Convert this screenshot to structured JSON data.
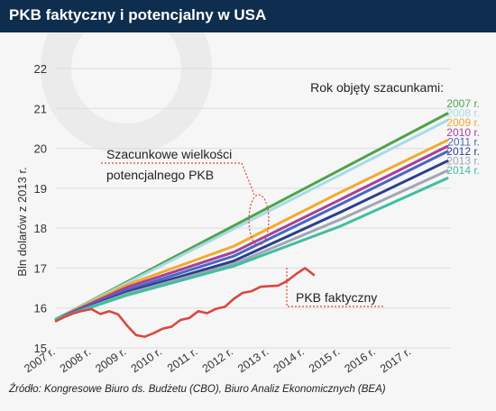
{
  "title": "PKB faktyczny i potencjalny w USA",
  "source": "Źródło: Kongresowe Biuro ds. Budżetu (CBO), Biuro Analiz Ekonomicznych (BEA)",
  "colors": {
    "header_bg": "#0f2d4e",
    "actual_line": "#d9473f",
    "annotation": "#d9473f"
  },
  "chart_data": {
    "type": "line",
    "ylabel": "Bln dolarów z 2013 r.",
    "ylim": [
      15,
      22
    ],
    "yticks": [
      15,
      16,
      17,
      18,
      19,
      20,
      21,
      22
    ],
    "xlim": [
      2007,
      2018
    ],
    "xticks": [
      2007,
      2008,
      2009,
      2010,
      2011,
      2012,
      2013,
      2014,
      2015,
      2016,
      2017
    ],
    "xtick_labels": [
      "2007 r.",
      "2008 r.",
      "2009 r.",
      "2010 r.",
      "2011 r.",
      "2012 r.",
      "2013 r.",
      "2014 r.",
      "2015 r.",
      "2016 r.",
      "2017 r."
    ],
    "legend_title": "Rok objęty szacunkami:",
    "legend_position": "right",
    "grid": true,
    "annotations": {
      "potential": "Szacunkowe wielkości potencjalnego PKB",
      "actual": "PKB faktyczny"
    },
    "series": [
      {
        "name": "2007 r.",
        "color": "#4ea34a",
        "x": [
          2007,
          2018
        ],
        "y": [
          15.72,
          20.87
        ]
      },
      {
        "name": "2008 r.",
        "color": "#a9d9ea",
        "x": [
          2007,
          2018
        ],
        "y": [
          15.72,
          20.7
        ]
      },
      {
        "name": "2009 r.",
        "color": "#f2aa2b",
        "x": [
          2007,
          2009,
          2012,
          2015,
          2018
        ],
        "y": [
          15.72,
          16.58,
          17.55,
          18.9,
          20.2
        ]
      },
      {
        "name": "2010 r.",
        "color": "#a3429b",
        "x": [
          2007,
          2009,
          2012,
          2015,
          2018
        ],
        "y": [
          15.72,
          16.52,
          17.4,
          18.72,
          20.05
        ]
      },
      {
        "name": "2011 r.",
        "color": "#4a66c4",
        "x": [
          2007,
          2009,
          2012,
          2015,
          2018
        ],
        "y": [
          15.72,
          16.45,
          17.3,
          18.6,
          19.92
        ]
      },
      {
        "name": "2012 r.",
        "color": "#2d3e8a",
        "x": [
          2007,
          2009,
          2012,
          2015,
          2018
        ],
        "y": [
          15.72,
          16.4,
          17.18,
          18.4,
          19.68
        ]
      },
      {
        "name": "2013 r.",
        "color": "#9fa6b4",
        "x": [
          2007,
          2009,
          2012,
          2015,
          2018
        ],
        "y": [
          15.72,
          16.36,
          17.1,
          18.22,
          19.44
        ]
      },
      {
        "name": "2014 r.",
        "color": "#3fbf9f",
        "x": [
          2007,
          2009,
          2012,
          2015,
          2018
        ],
        "y": [
          15.72,
          16.32,
          17.05,
          18.05,
          19.25
        ]
      },
      {
        "name": "PKB faktyczny",
        "color": "#d9473f",
        "x": [
          2007.0,
          2007.25,
          2007.5,
          2007.75,
          2008.0,
          2008.25,
          2008.5,
          2008.75,
          2009.0,
          2009.25,
          2009.5,
          2009.75,
          2010.0,
          2010.25,
          2010.5,
          2010.75,
          2011.0,
          2011.25,
          2011.5,
          2011.75,
          2012.0,
          2012.25,
          2012.5,
          2012.75,
          2013.0,
          2013.25,
          2013.5,
          2013.75,
          2014.0,
          2014.25
        ],
        "y": [
          15.67,
          15.78,
          15.87,
          15.93,
          15.97,
          15.85,
          15.92,
          15.84,
          15.56,
          15.32,
          15.28,
          15.37,
          15.48,
          15.53,
          15.7,
          15.75,
          15.92,
          15.87,
          15.98,
          16.03,
          16.23,
          16.38,
          16.42,
          16.53,
          16.55,
          16.56,
          16.68,
          16.85,
          17.0,
          16.83
        ]
      }
    ]
  }
}
